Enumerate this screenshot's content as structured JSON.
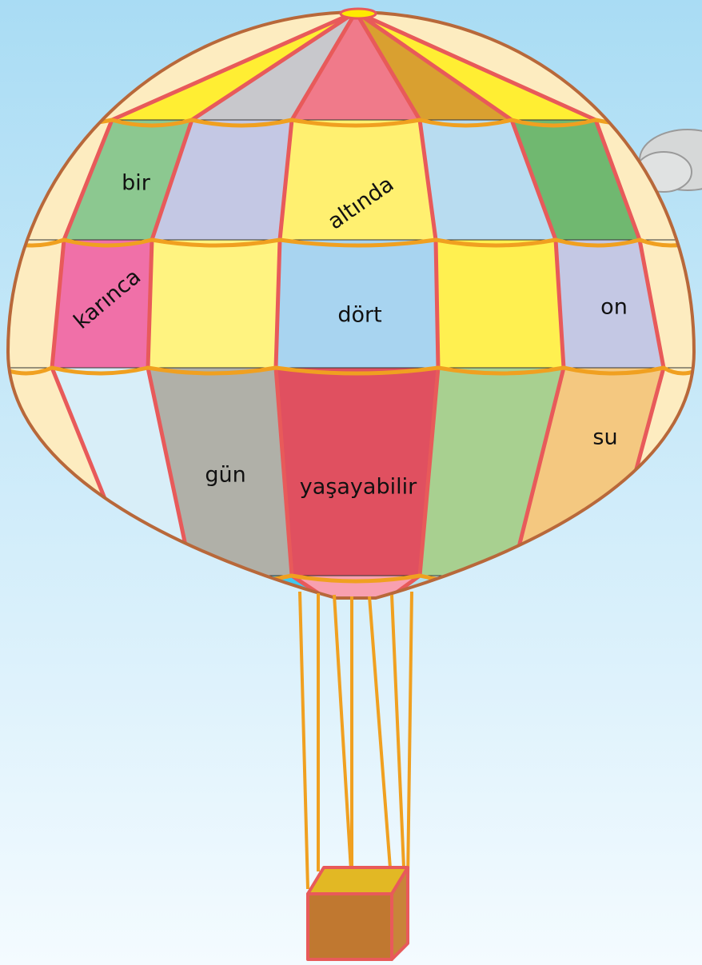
{
  "words": [
    "bir",
    "altında",
    "karınca",
    "dört",
    "on",
    "gün",
    "yaşayabilir",
    "su"
  ]
}
